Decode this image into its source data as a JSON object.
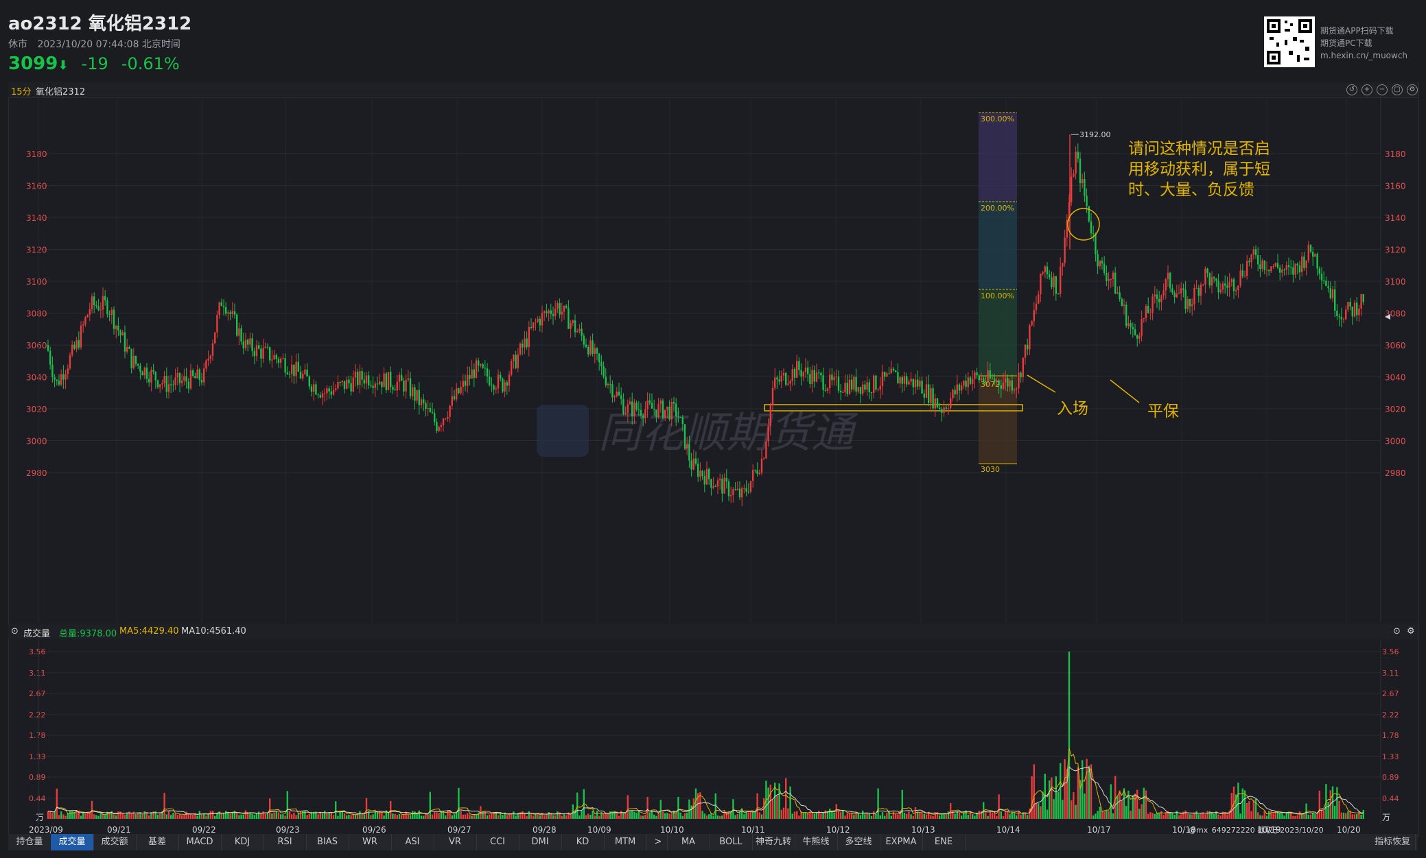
{
  "header": {
    "title": "ao2312 氧化铝2312",
    "status": "休市",
    "datetime": "2023/10/20 07:44:08 北京时间",
    "price": "3099",
    "change": "-19",
    "change_pct": "-0.61%"
  },
  "qr_text": {
    "line1": "期货通APP扫码下载",
    "line2": "期货通PC下载",
    "line3": "m.hexin.cn/_muowch"
  },
  "main_panel": {
    "period": "15分",
    "name": "氧化铝2312"
  },
  "price_axis": [
    "3180",
    "3160",
    "3140",
    "3120",
    "3100",
    "3080",
    "3060",
    "3040",
    "3020",
    "3000",
    "2980"
  ],
  "date_axis": [
    "2023/09",
    "09/21",
    "09/22",
    "09/23",
    "09/26",
    "09/27",
    "09/28",
    "10/09",
    "10/10",
    "10/11",
    "10/12",
    "10/13",
    "10/14",
    "10/17",
    "10/18",
    "10/19",
    "10/20"
  ],
  "fib": {
    "p300": "300.00%",
    "p200": "200.00%",
    "p100": "100.00%",
    "p_top": "3072",
    "p_bot": "3030"
  },
  "high_label": "3192.00",
  "annotation": {
    "line1": "请问这种情况是否启",
    "line2": "用移动获利，属于短",
    "line3": "时、大量、负反馈",
    "entry": "入场",
    "breakeven": "平保"
  },
  "watermark": "同花顺期货通",
  "volume_panel": {
    "name": "成交量",
    "total": "总量:9378.00",
    "ma5": "MA5:4429.40",
    "ma10": "MA10:4561.40",
    "unit": "万",
    "axis": [
      "3.56",
      "3.11",
      "2.67",
      "2.22",
      "1.78",
      "1.33",
      "0.89",
      "0.44"
    ]
  },
  "footer": {
    "credit": "@mx_649272220 截取于2023/10/20",
    "restore": "指标恢复"
  },
  "tabs": [
    "持仓量",
    "成交量",
    "成交额",
    "基差",
    "MACD",
    "KDJ",
    "RSI",
    "BIAS",
    "WR",
    "ASI",
    "VR",
    "CCI",
    "DMI",
    "KD",
    "MTM",
    ">",
    "MA",
    "BOLL",
    "神奇九转",
    "牛熊线",
    "多空线",
    "EXPMA",
    "ENE"
  ],
  "colors": {
    "up": "#e83b3b",
    "down": "#19c24a",
    "accent": "#e0b400"
  }
}
